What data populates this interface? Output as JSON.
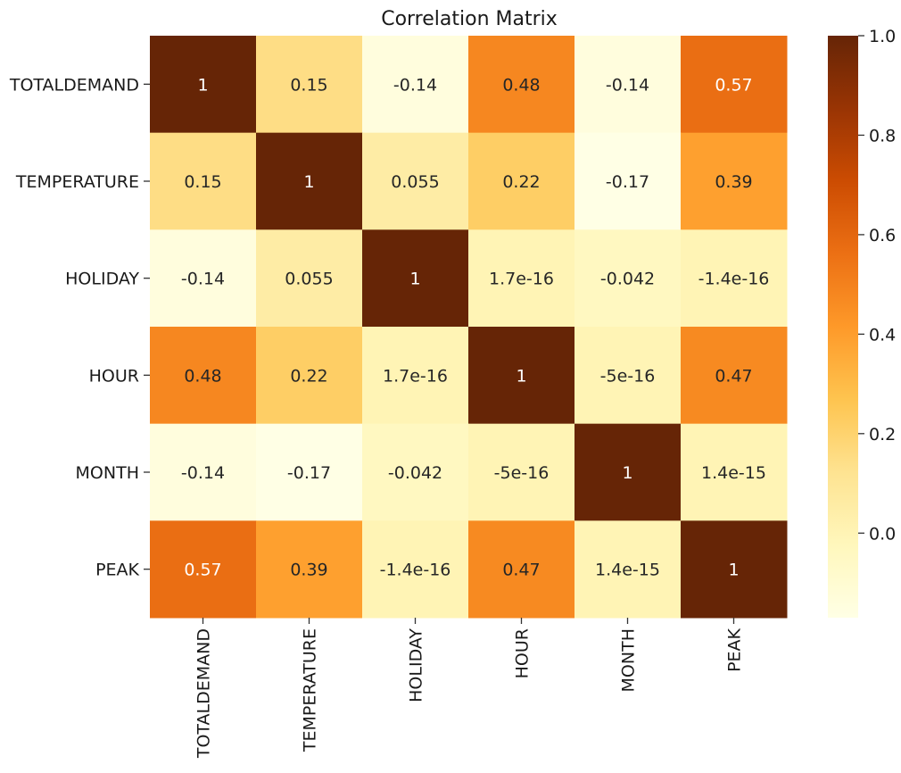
{
  "chart_data": {
    "type": "heatmap",
    "title": "Correlation Matrix",
    "x_labels": [
      "TOTALDEMAND",
      "TEMPERATURE",
      "HOLIDAY",
      "HOUR",
      "MONTH",
      "PEAK"
    ],
    "y_labels": [
      "TOTALDEMAND",
      "TEMPERATURE",
      "HOLIDAY",
      "HOUR",
      "MONTH",
      "PEAK"
    ],
    "values": [
      [
        1,
        0.15,
        -0.14,
        0.48,
        -0.14,
        0.57
      ],
      [
        0.15,
        1,
        0.055,
        0.22,
        -0.17,
        0.39
      ],
      [
        -0.14,
        0.055,
        1,
        1.7e-16,
        -0.042,
        -1.4e-16
      ],
      [
        0.48,
        0.22,
        1.7e-16,
        1,
        -5e-16,
        0.47
      ],
      [
        -0.14,
        -0.17,
        -0.042,
        -5e-16,
        1,
        1.4e-15
      ],
      [
        0.57,
        0.39,
        -1.4e-16,
        0.47,
        1.4e-15,
        1
      ]
    ],
    "annotations": [
      [
        "1",
        "0.15",
        "-0.14",
        "0.48",
        "-0.14",
        "0.57"
      ],
      [
        "0.15",
        "1",
        "0.055",
        "0.22",
        "-0.17",
        "0.39"
      ],
      [
        "-0.14",
        "0.055",
        "1",
        "1.7e-16",
        "-0.042",
        "-1.4e-16"
      ],
      [
        "0.48",
        "0.22",
        "1.7e-16",
        "1",
        "-5e-16",
        "0.47"
      ],
      [
        "-0.14",
        "-0.17",
        "-0.042",
        "-5e-16",
        "1",
        "1.4e-15"
      ],
      [
        "0.57",
        "0.39",
        "-1.4e-16",
        "0.47",
        "1.4e-15",
        "1"
      ]
    ],
    "colormap": "YlOrBr",
    "colormap_stops": [
      "#ffffe5",
      "#fff7bc",
      "#fee391",
      "#fec44f",
      "#fe9929",
      "#ec7014",
      "#cc4c02",
      "#993404",
      "#662506"
    ],
    "vmin": -0.17,
    "vmax": 1.0,
    "colorbar": {
      "ticks": [
        0.0,
        0.2,
        0.4,
        0.6,
        0.8,
        1.0
      ],
      "tick_labels": [
        "0.0",
        "0.2",
        "0.4",
        "0.6",
        "0.8",
        "1.0"
      ],
      "position": "right"
    },
    "grid": false
  }
}
